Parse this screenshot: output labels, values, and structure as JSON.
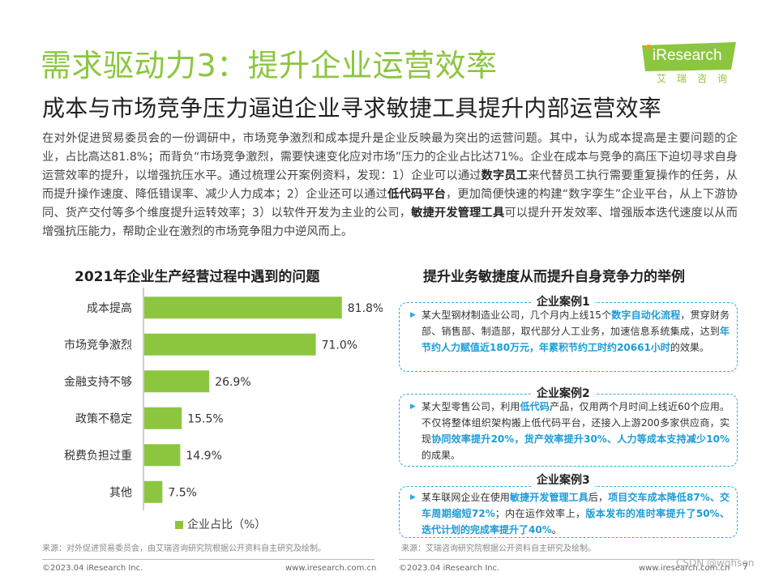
{
  "header": {
    "title": "需求驱动力3：提升企业运营效率",
    "subtitle": "成本与市场竞争压力逼迫企业寻求敏捷工具提升内部运营效率",
    "logo_text": "iResearch",
    "logo_sub": "艾瑞咨询"
  },
  "intro": {
    "p1": "在对外促进贸易委员会的一份调研中，市场竞争激烈和成本提升是企业反映最为突出的运营问题。其中，认为成本提高是主要问题的企业，占比高达81.8%；而背负“市场竞争激烈，需要快速变化应对市场”压力的企业占比达71%。企业在成本与竞争的高压下迫切寻求自身运营效率的提升，以增强抗压水平。通过梳理公开案例资料，发现：1）企业可以通过",
    "b1": "数字员工",
    "p2": "来代替员工执行需要重复操作的任务，从而提升操作速度、降低错误率、减少人力成本；2）企业还可以通过",
    "b2": "低代码平台",
    "p3": "，更加简便快速的构建“数字孪生”企业平台，从上下游协同、货产交付等多个维度提升运转效率；3）以软件开发为主业的公司，",
    "b3": "敏捷开发管理工具",
    "p4": "可以提升开发效率、增强版本迭代速度以从而增强抗压能力，帮助企业在激烈的市场竞争阻力中逆风而上。"
  },
  "chart_title": "2021年企业生产经营过程中遇到的问题",
  "chart_data": {
    "type": "bar",
    "orientation": "horizontal",
    "categories": [
      "成本提高",
      "市场竞争激烈",
      "金融支持不够",
      "政策不稳定",
      "税费负担过重",
      "其他"
    ],
    "values": [
      81.8,
      71.0,
      26.9,
      15.5,
      14.9,
      7.5
    ],
    "value_labels": [
      "81.8%",
      "71.0%",
      "26.9%",
      "15.5%",
      "14.9%",
      "7.5%"
    ],
    "series": [
      {
        "name": "企业占比（%）",
        "values": [
          81.8,
          71.0,
          26.9,
          15.5,
          14.9,
          7.5
        ]
      }
    ],
    "legend": "企业占比（%）",
    "legend_position": "bottom",
    "color": "#8cc63f",
    "xlim": [
      0,
      100
    ],
    "grid": false
  },
  "cases_title": "提升业务敏捷度从而提升自身竞争力的举例",
  "cases": [
    {
      "head": "企业案例1",
      "t1": "某大型钢材制造业公司，几个月内上线15个",
      "b1": "数字自动化流程",
      "t2": "，贯穿财务部、销售部、制造部，取代部分人工业务，加速信息系统集成，达到",
      "b2": "年节约人力赋值近180万元，年累积节约工时约20661小时",
      "t3": "的效果。",
      "b3": "",
      "t4": ""
    },
    {
      "head": "企业案例2",
      "t1": "某大型零售公司，利用",
      "b1": "低代码",
      "t2": "产品，仅用两个月时间上线近60个应用。不仅将整体组织架构搬上低代码平台，还接入上游200多家供应商，实现",
      "b2": "协同效率提升20%，货产效率提升30%、人力等成本支持减少10%",
      "t3": "的成果。",
      "b3": "",
      "t4": ""
    },
    {
      "head": "企业案例3",
      "t1": "某车联网企业在使用",
      "b1": "敏捷开发管理工具",
      "t2": "后，",
      "b2": "项目交车成本降低87%、交车周期缩短72%",
      "t3": "；内在运作效率上，",
      "b3": "版本发布的准时率提升了50%、迭代计划的完成率提升了40%",
      "t4": "。"
    }
  ],
  "notes": {
    "left": "来源：对外促进贸易委员会，由艾瑞咨询研究院根据公开资料自主研究及绘制。",
    "right": "来源：艾瑞咨询研究院根据公开资料自主研究及绘制。"
  },
  "footer": {
    "copyright_left": "©2023.04 iResearch Inc.",
    "url_left": "www.iresearch.com.cn",
    "copyright_right": "©2023.04 iResearch Inc.",
    "url_right": "www.iresearch.com.cn",
    "page": "7",
    "watermark": "CSDN @wqhsen"
  }
}
